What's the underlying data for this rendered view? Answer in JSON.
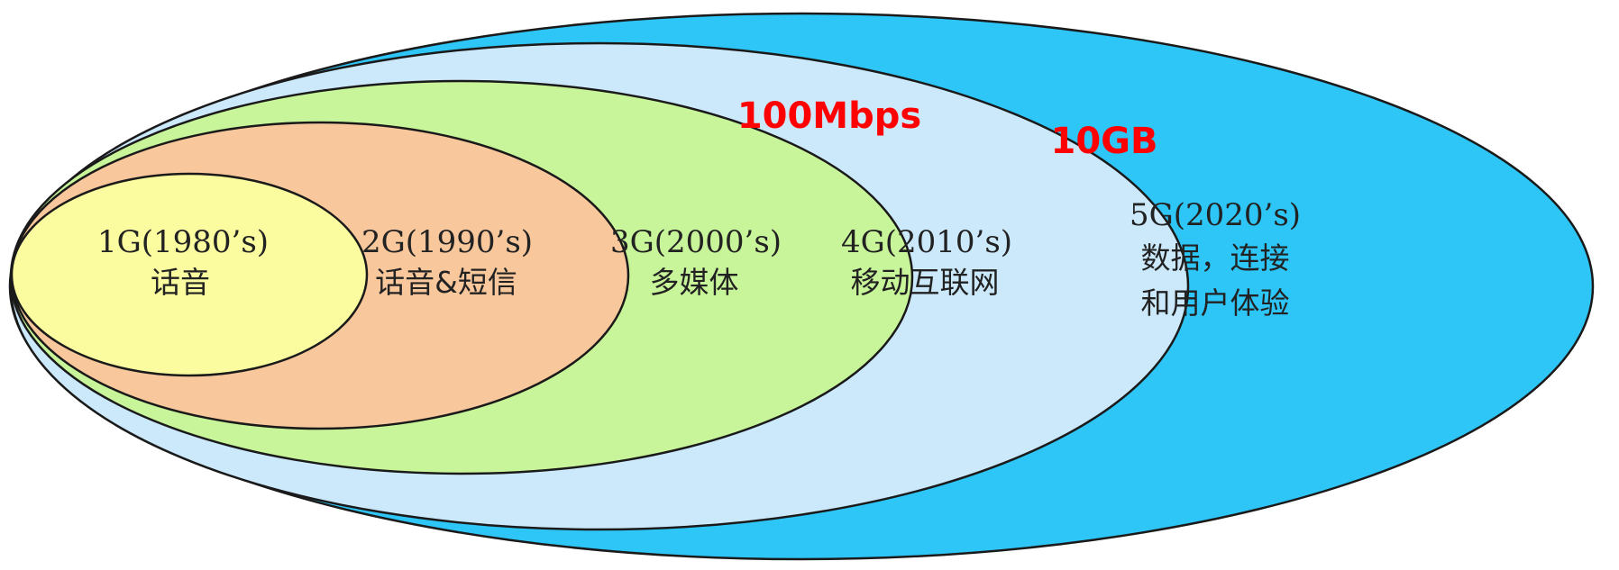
{
  "colors": {
    "g5": "#2ec5f7",
    "g4": "#cce9fb",
    "g3": "#c9f59a",
    "g2": "#f8c79c",
    "g1": "#fbfba0",
    "outline": "#1a1a1a",
    "speed": "#ff0000"
  },
  "generations": [
    {
      "gen": "1G(1980’s)",
      "lines": [
        "话音"
      ]
    },
    {
      "gen": "2G(1990’s)",
      "lines": [
        "话音&短信"
      ]
    },
    {
      "gen": "3G(2000’s)",
      "lines": [
        "多媒体"
      ]
    },
    {
      "gen": "4G(2010’s)",
      "lines": [
        "移动互联网"
      ]
    },
    {
      "gen": "5G(2020’s)",
      "lines": [
        "数据，连接",
        "和用户体验"
      ]
    }
  ],
  "speeds": {
    "g4": "100Mbps",
    "g5": "10GB"
  }
}
